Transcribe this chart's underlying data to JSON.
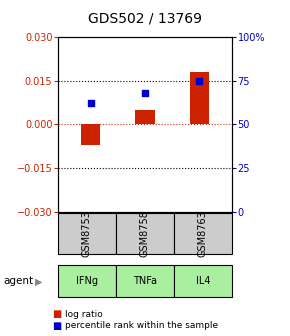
{
  "title": "GDS502 / 13769",
  "samples": [
    "GSM8753",
    "GSM8758",
    "GSM8763"
  ],
  "agents": [
    "IFNg",
    "TNFa",
    "IL4"
  ],
  "log_ratios": [
    -0.007,
    0.005,
    0.018
  ],
  "percentile_ranks": [
    62,
    68,
    75
  ],
  "ylim_left": [
    -0.03,
    0.03
  ],
  "ylim_right": [
    0,
    100
  ],
  "left_yticks": [
    -0.03,
    -0.015,
    0,
    0.015,
    0.03
  ],
  "right_yticks": [
    0,
    25,
    50,
    75,
    100
  ],
  "right_yticklabels": [
    "0",
    "25",
    "50",
    "75",
    "100%"
  ],
  "bar_color": "#cc2200",
  "square_color": "#0000cc",
  "hline_color": "#cc2200",
  "dotted_color": "#333333",
  "gray_cell_color": "#cccccc",
  "green_cell_color": "#aaeea0",
  "bar_width": 0.35,
  "square_size": 25,
  "agent_label": "agent",
  "legend_bar_label": "log ratio",
  "legend_sq_label": "percentile rank within the sample",
  "title_fontsize": 10,
  "axis_fontsize": 7,
  "label_fontsize": 7.5,
  "cell_fontsize": 7
}
